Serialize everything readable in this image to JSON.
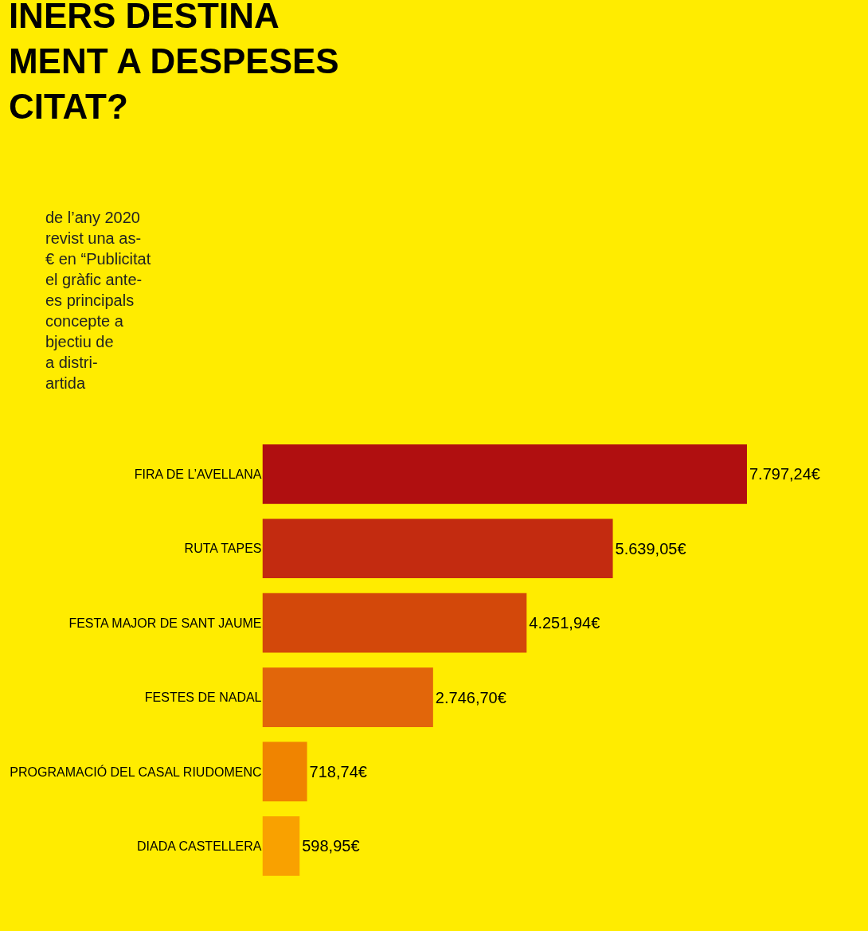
{
  "chart_data": {
    "type": "bar",
    "orientation": "horizontal",
    "title": "INERS DESTINA\nMENT A DESPESES\nCITAT?",
    "subtitle": "de l’any 2020\nrevist una as-\n€ en “Publicitat\nel gràfic ante-\nes principals\nconcepte a\nbjectiu de\na distri-\nartida",
    "categories": [
      "FIRA DE L’AVELLANA",
      "RUTA TAPES",
      "FESTA MAJOR DE SANT JAUME",
      "FESTES DE NADAL",
      "PROGRAMACIÓ DEL CASAL RIUDOMENC",
      "DIADA CASTELLERA"
    ],
    "values": [
      7797.24,
      5639.05,
      4251.94,
      2746.7,
      718.74,
      598.95
    ],
    "value_labels": [
      "7.797,24€",
      "5.639,05€",
      "4.251,94€",
      "2.746,70€",
      "718,74€",
      "598,95€"
    ],
    "colors": [
      "#b00f10",
      "#c32b10",
      "#d3480a",
      "#e2660a",
      "#f08400",
      "#f9a100"
    ],
    "legend": false
  }
}
